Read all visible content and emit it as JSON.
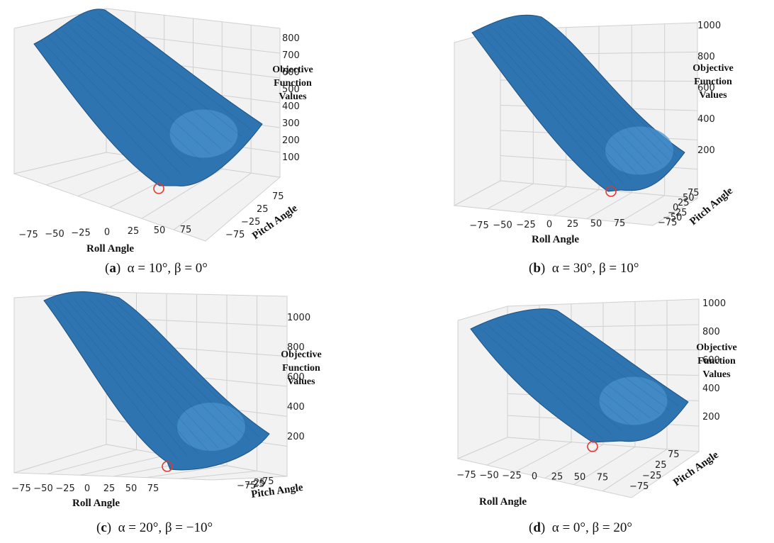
{
  "figure": {
    "panels": [
      {
        "id": "a",
        "caption": {
          "tag": "a",
          "text": "α = 10°, β = 0°"
        },
        "chart_data": {
          "type": "surface3d",
          "xlabel": "Roll Angle",
          "ylabel": "Pitch Angle",
          "zlabel": "Objective Function Values",
          "x_ticks": [
            "−75",
            "−50",
            "−25",
            "0",
            "25",
            "50",
            "75"
          ],
          "y_ticks": [
            "−75",
            "−25",
            "25",
            "75"
          ],
          "z_ticks": [
            "100",
            "200",
            "300",
            "400",
            "500",
            "600",
            "700",
            "800"
          ],
          "minimum_marker": true
        }
      },
      {
        "id": "b",
        "caption": {
          "tag": "b",
          "text": "α = 30°, β = 10°"
        },
        "chart_data": {
          "type": "surface3d",
          "xlabel": "Roll Angle",
          "ylabel": "Pitch Angle",
          "zlabel": "Objective Function Values",
          "x_ticks": [
            "−75",
            "−50",
            "−25",
            "0",
            "25",
            "50",
            "75"
          ],
          "y_ticks": [
            "−75",
            "−50",
            "−25",
            "0",
            "25",
            "50",
            "75"
          ],
          "z_ticks": [
            "200",
            "400",
            "600",
            "800",
            "1000"
          ],
          "minimum_marker": true
        }
      },
      {
        "id": "c",
        "caption": {
          "tag": "c",
          "text": "α = 20°, β = −10°"
        },
        "chart_data": {
          "type": "surface3d",
          "xlabel": "Roll Angle",
          "ylabel": "Pitch Angle",
          "zlabel": "Objective Function Values",
          "x_ticks": [
            "−75",
            "−50",
            "−25",
            "0",
            "25",
            "50",
            "75"
          ],
          "y_ticks": [
            "−75",
            "−25",
            "25",
            "75"
          ],
          "z_ticks": [
            "200",
            "400",
            "600",
            "800",
            "1000"
          ],
          "minimum_marker": true
        }
      },
      {
        "id": "d",
        "caption": {
          "tag": "d",
          "text": "α = 0°, β = 20°"
        },
        "chart_data": {
          "type": "surface3d",
          "xlabel": "Roll Angle",
          "ylabel": "Pitch Angle",
          "zlabel": "Objective Function Values",
          "x_ticks": [
            "−75",
            "−50",
            "−25",
            "0",
            "25",
            "50",
            "75"
          ],
          "y_ticks": [
            "−75",
            "−25",
            "25",
            "75"
          ],
          "z_ticks": [
            "200",
            "400",
            "600",
            "800",
            "1000"
          ],
          "minimum_marker": true
        }
      }
    ],
    "colors": {
      "surface": "#2d74b0",
      "surface_dark": "#1c4f80",
      "surface_light": "#4a92cc",
      "grid": "#d0d0d0",
      "pane": "#f2f2f2",
      "marker": "#e0392f"
    }
  }
}
